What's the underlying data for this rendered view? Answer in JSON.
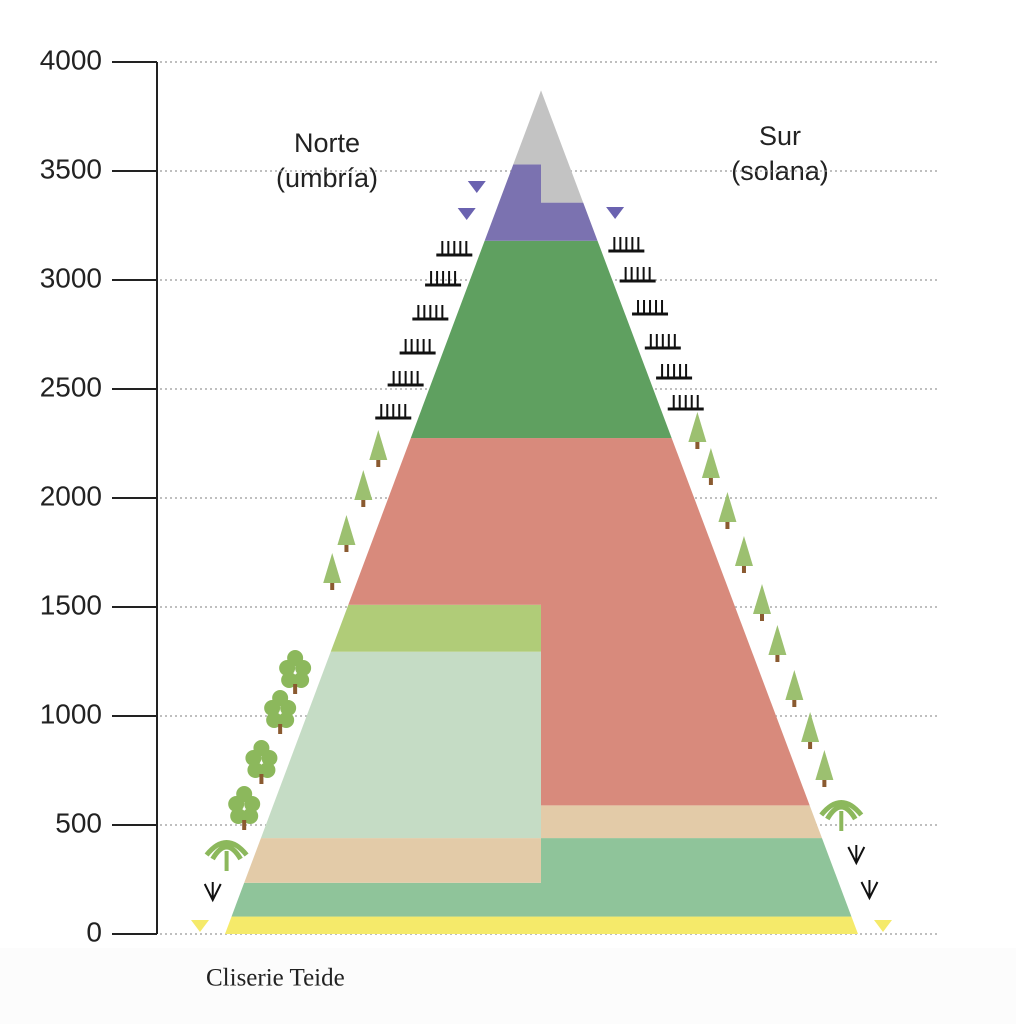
{
  "chart_data": {
    "type": "altitude-zones",
    "north_label": [
      "Norte",
      "(umbría)"
    ],
    "south_label": [
      "Sur",
      "(solana)"
    ],
    "caption": "Cliserie Teide",
    "ylim": [
      0,
      4000
    ],
    "yticks": [
      0,
      500,
      1000,
      1500,
      2000,
      2500,
      3000,
      3500,
      4000
    ],
    "grid": true,
    "peak": 3870,
    "zones": [
      {
        "side": "both",
        "color": "#f5ea6a",
        "range": [
          0,
          80
        ]
      },
      {
        "side": "north",
        "color": "#8fc49a",
        "range": [
          80,
          235
        ]
      },
      {
        "side": "south",
        "color": "#8fc49a",
        "range": [
          80,
          440
        ]
      },
      {
        "side": "north",
        "color": "#e3cba8",
        "range": [
          235,
          440
        ]
      },
      {
        "side": "south",
        "color": "#e3cba8",
        "range": [
          440,
          590
        ]
      },
      {
        "side": "north",
        "color": "#c5dcc5",
        "range": [
          440,
          1295
        ]
      },
      {
        "side": "north",
        "color": "#b0cc78",
        "range": [
          1295,
          1510
        ]
      },
      {
        "side": "north",
        "color": "#d88a7c",
        "range": [
          1510,
          2275
        ]
      },
      {
        "side": "south",
        "color": "#d88a7c",
        "range": [
          590,
          2275
        ]
      },
      {
        "side": "both",
        "color": "#5fa060",
        "range": [
          2275,
          3180
        ]
      },
      {
        "side": "north",
        "color": "#7b72b0",
        "range": [
          3180,
          3530
        ]
      },
      {
        "side": "south",
        "color": "#7b72b0",
        "range": [
          3180,
          3355
        ]
      },
      {
        "side": "north",
        "color": "#c3c3c3",
        "range": [
          3530,
          3870
        ]
      },
      {
        "side": "south",
        "color": "#c3c3c3",
        "range": [
          3355,
          3870
        ]
      }
    ]
  }
}
